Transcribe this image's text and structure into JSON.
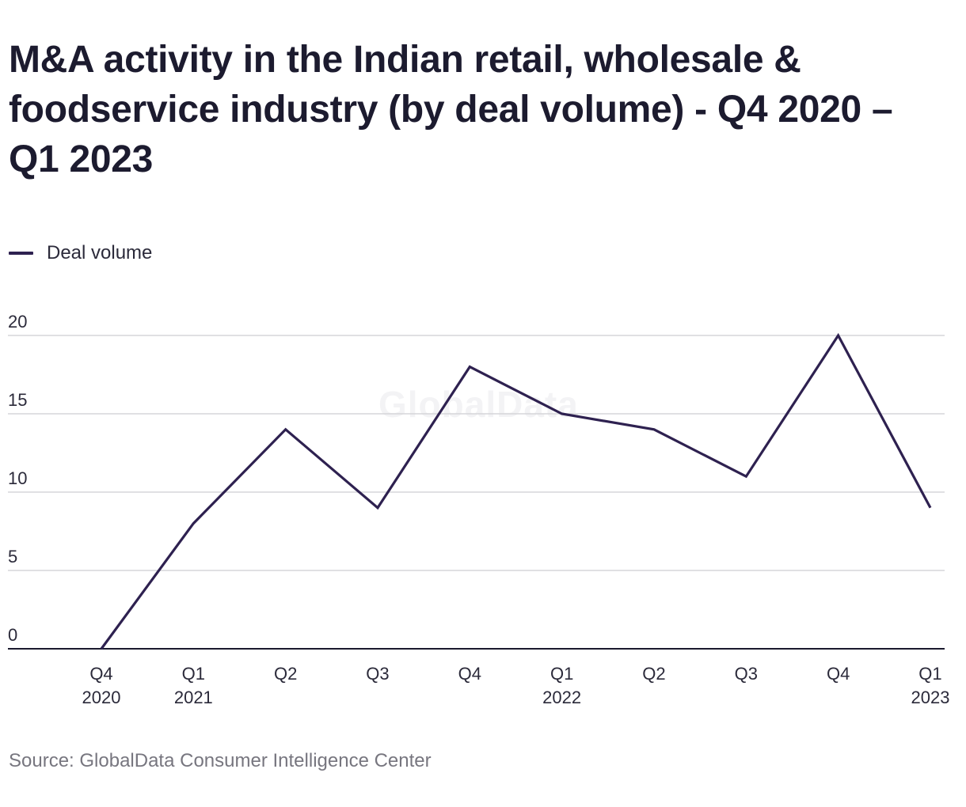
{
  "chart_data": {
    "type": "line",
    "title": "M&A activity in the Indian retail, wholesale & foodservice industry (by deal volume) - Q4 2020 – Q1 2023",
    "categories": [
      [
        "Q4",
        "2020"
      ],
      [
        "Q1",
        "2021"
      ],
      [
        "Q2"
      ],
      [
        "Q3"
      ],
      [
        "Q4"
      ],
      [
        "Q1",
        "2022"
      ],
      [
        "Q2"
      ],
      [
        "Q3"
      ],
      [
        "Q4"
      ],
      [
        "Q1",
        "2023"
      ]
    ],
    "series": [
      {
        "name": "Deal volume",
        "color": "#2e2150",
        "values": [
          0,
          8,
          14,
          9,
          18,
          15,
          14,
          11,
          20,
          9
        ]
      }
    ],
    "yticks": [
      0,
      5,
      10,
      15,
      20
    ],
    "ylim": [
      0,
      20
    ],
    "xlabel": "",
    "ylabel": "",
    "grid": true,
    "legend_position": "top-left"
  },
  "source": "Source: GlobalData Consumer Intelligence Center",
  "watermark": "GlobalData"
}
